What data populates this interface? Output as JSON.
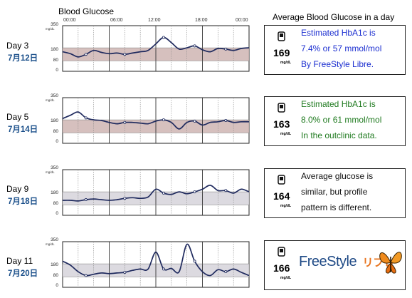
{
  "header": {
    "title": "Blood Glucose",
    "right_title": "Average Blood Glucose in a day",
    "hours": [
      "00:00",
      "06:00",
      "12:00",
      "18:00",
      "00:00"
    ]
  },
  "axis": {
    "top": "350",
    "high": "180",
    "low": "80",
    "zero": "0",
    "unit": "mg/dL"
  },
  "rows": [
    {
      "day": "Day 3",
      "date": "7月12日",
      "avg": "169",
      "unit": "mg/dL",
      "lines": [
        "Estimated HbA1c is",
        "7.4% or 57 mmol/mol",
        "By FreeStyle Libre."
      ],
      "color": "#1c2fd0"
    },
    {
      "day": "Day 5",
      "date": "7月14日",
      "avg": "163",
      "unit": "mg/dL",
      "lines": [
        "Estimated HbA1c is",
        "8.0% or 61 mmol/mol",
        "In the outclinic data."
      ],
      "color": "#1f7a1f"
    },
    {
      "day": "Day 9",
      "date": "7月18日",
      "avg": "164",
      "unit": "mg/dL",
      "lines": [
        "Average glucose is",
        "similar, but profile",
        "pattern is different."
      ],
      "color": "#111111"
    },
    {
      "day": "Day 11",
      "date": "7月20日",
      "avg": "166",
      "unit": "mg/dL",
      "logo_text": "FreeStyle",
      "logo_jp": "リブレ"
    }
  ],
  "chart_data": [
    {
      "type": "line",
      "title": "Day 3",
      "y_range": [
        0,
        350
      ],
      "target_range": [
        80,
        180
      ],
      "x": [
        0,
        1,
        2,
        3,
        4,
        5,
        6,
        7,
        8,
        9,
        10,
        11,
        12,
        13,
        14,
        15,
        16,
        17,
        18,
        19,
        20,
        21,
        22,
        23,
        24
      ],
      "values": [
        150,
        135,
        110,
        130,
        160,
        145,
        135,
        140,
        130,
        140,
        150,
        160,
        210,
        260,
        220,
        170,
        180,
        195,
        165,
        150,
        175,
        170,
        160,
        175,
        180
      ]
    },
    {
      "type": "line",
      "title": "Day 5",
      "y_range": [
        0,
        350
      ],
      "target_range": [
        80,
        180
      ],
      "x": [
        0,
        1,
        2,
        3,
        4,
        5,
        6,
        7,
        8,
        9,
        10,
        11,
        12,
        13,
        14,
        15,
        16,
        17,
        18,
        19,
        20,
        21,
        22,
        23,
        24
      ],
      "values": [
        190,
        215,
        240,
        195,
        180,
        175,
        160,
        150,
        160,
        160,
        155,
        150,
        170,
        180,
        160,
        110,
        160,
        170,
        140,
        160,
        165,
        175,
        160,
        165,
        165
      ]
    },
    {
      "type": "line",
      "title": "Day 9",
      "y_range": [
        0,
        350
      ],
      "target_range": [
        80,
        180
      ],
      "x": [
        0,
        1,
        2,
        3,
        4,
        5,
        6,
        7,
        8,
        9,
        10,
        11,
        12,
        13,
        14,
        15,
        16,
        17,
        18,
        19,
        20,
        21,
        22,
        23,
        24
      ],
      "values": [
        115,
        115,
        110,
        120,
        125,
        120,
        115,
        120,
        130,
        135,
        130,
        140,
        200,
        170,
        160,
        180,
        165,
        180,
        200,
        230,
        190,
        190,
        170,
        200,
        180
      ]
    },
    {
      "type": "line",
      "title": "Day 11",
      "y_range": [
        0,
        350
      ],
      "target_range": [
        80,
        180
      ],
      "x": [
        0,
        1,
        2,
        3,
        4,
        5,
        6,
        7,
        8,
        9,
        10,
        11,
        12,
        13,
        14,
        15,
        16,
        17,
        18,
        19,
        20,
        21,
        22,
        23,
        24
      ],
      "values": [
        200,
        170,
        120,
        90,
        100,
        110,
        105,
        110,
        115,
        130,
        140,
        140,
        270,
        140,
        145,
        120,
        330,
        200,
        120,
        90,
        135,
        120,
        140,
        115,
        90
      ]
    }
  ]
}
